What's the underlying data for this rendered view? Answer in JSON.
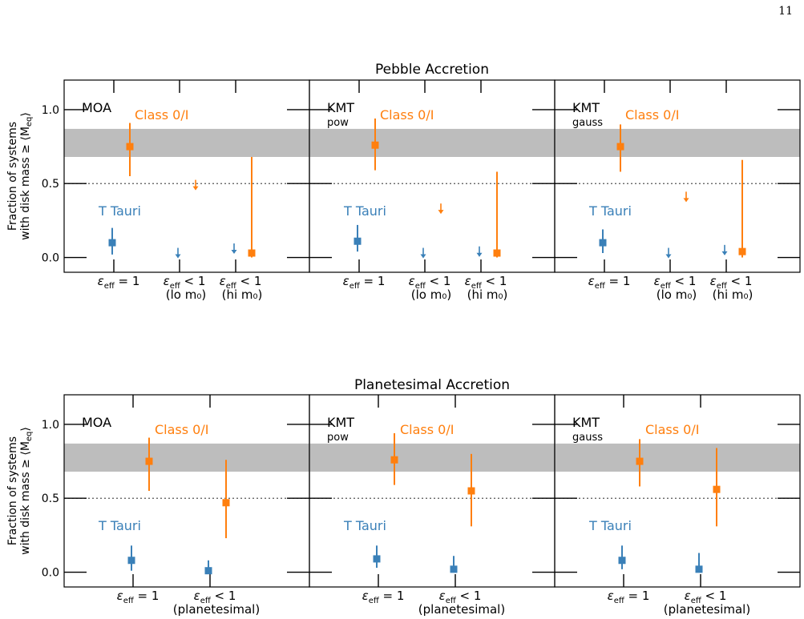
{
  "page_number": "11",
  "colors": {
    "class01": "#ff7f0e",
    "ttauri": "#3a80b8",
    "band": "#bdbdbd",
    "frame": "#000000"
  },
  "y_axis": {
    "line1": "Fraction of systems",
    "line2": "with disk mass ≥ ⟨M",
    "sub": "eq",
    "close": "⟩"
  },
  "pebble_xlabels": [
    {
      "eps": "ε",
      "sub": "eff",
      "rel": " = 1",
      "line2": ""
    },
    {
      "eps": "ε",
      "sub": "eff",
      "rel": " < 1",
      "line2": "(lo m₀)"
    },
    {
      "eps": "ε",
      "sub": "eff",
      "rel": " < 1",
      "line2": "(hi m₀)"
    }
  ],
  "plan_xlabels": [
    {
      "eps": "ε",
      "sub": "eff",
      "rel": " = 1",
      "line2": ""
    },
    {
      "eps": "ε",
      "sub": "eff",
      "rel": " < 1",
      "line2": "(planetesimal)"
    }
  ],
  "chart_data": [
    {
      "type": "scatter",
      "row_title": "Pebble Accretion",
      "panels": [
        {
          "label": "MOA",
          "sublabel": "",
          "class_label": "Class 0/I",
          "tt_label": "T Tauri",
          "ylim": [
            -0.1,
            1.2
          ],
          "yticks": [
            "0.0",
            "0.5",
            "1.0"
          ],
          "band": [
            0.68,
            0.87
          ],
          "reference_line": 0.5,
          "points": [
            {
              "x": 1,
              "y": 0.1,
              "lo": 0.02,
              "hi": 0.2,
              "series": "T Tauri",
              "kind": "point"
            },
            {
              "x": 1.2,
              "y": 0.75,
              "lo": 0.55,
              "hi": 0.91,
              "series": "Class 0/I",
              "kind": "point"
            },
            {
              "x": 2,
              "y": 0.0,
              "series": "T Tauri",
              "kind": "upper_limit"
            },
            {
              "x": 2.2,
              "y": 0.46,
              "series": "Class 0/I",
              "kind": "upper_limit"
            },
            {
              "x": 3,
              "y": 0.03,
              "series": "T Tauri",
              "kind": "upper_limit"
            },
            {
              "x": 3.2,
              "y": 0.03,
              "lo": 0.0,
              "hi": 0.68,
              "series": "Class 0/I",
              "kind": "point"
            }
          ]
        },
        {
          "label": "KMT",
          "sublabel": "pow",
          "class_label": "Class 0/I",
          "tt_label": "T Tauri",
          "ylim": [
            -0.1,
            1.2
          ],
          "yticks": [
            "0.0",
            "0.5",
            "1.0"
          ],
          "band": [
            0.68,
            0.87
          ],
          "reference_line": 0.5,
          "points": [
            {
              "x": 1,
              "y": 0.11,
              "lo": 0.04,
              "hi": 0.22,
              "series": "T Tauri",
              "kind": "point"
            },
            {
              "x": 1.2,
              "y": 0.76,
              "lo": 0.59,
              "hi": 0.94,
              "series": "Class 0/I",
              "kind": "point"
            },
            {
              "x": 2,
              "y": 0.0,
              "series": "T Tauri",
              "kind": "upper_limit"
            },
            {
              "x": 2.2,
              "y": 0.3,
              "series": "Class 0/I",
              "kind": "upper_limit"
            },
            {
              "x": 3,
              "y": 0.01,
              "series": "T Tauri",
              "kind": "upper_limit"
            },
            {
              "x": 3.2,
              "y": 0.03,
              "lo": 0.0,
              "hi": 0.58,
              "series": "Class 0/I",
              "kind": "point"
            }
          ]
        },
        {
          "label": "KMT",
          "sublabel": "gauss",
          "class_label": "Class 0/I",
          "tt_label": "T Tauri",
          "ylim": [
            -0.1,
            1.2
          ],
          "yticks": [
            "0.0",
            "0.5",
            "1.0"
          ],
          "band": [
            0.68,
            0.87
          ],
          "reference_line": 0.5,
          "points": [
            {
              "x": 1,
              "y": 0.1,
              "lo": 0.03,
              "hi": 0.19,
              "series": "T Tauri",
              "kind": "point"
            },
            {
              "x": 1.2,
              "y": 0.75,
              "lo": 0.58,
              "hi": 0.9,
              "series": "Class 0/I",
              "kind": "point"
            },
            {
              "x": 2,
              "y": 0.0,
              "series": "T Tauri",
              "kind": "upper_limit"
            },
            {
              "x": 2.2,
              "y": 0.38,
              "series": "Class 0/I",
              "kind": "upper_limit"
            },
            {
              "x": 3,
              "y": 0.02,
              "series": "T Tauri",
              "kind": "upper_limit"
            },
            {
              "x": 3.2,
              "y": 0.04,
              "lo": 0.0,
              "hi": 0.66,
              "series": "Class 0/I",
              "kind": "point"
            }
          ]
        }
      ]
    },
    {
      "type": "scatter",
      "row_title": "Planetesimal Accretion",
      "panels": [
        {
          "label": "MOA",
          "sublabel": "",
          "class_label": "Class 0/I",
          "tt_label": "T Tauri",
          "ylim": [
            -0.1,
            1.2
          ],
          "yticks": [
            "0.0",
            "0.5",
            "1.0"
          ],
          "band": [
            0.68,
            0.87
          ],
          "reference_line": 0.5,
          "points": [
            {
              "x": 1,
              "y": 0.08,
              "lo": 0.01,
              "hi": 0.18,
              "series": "T Tauri",
              "kind": "point"
            },
            {
              "x": 1.2,
              "y": 0.75,
              "lo": 0.55,
              "hi": 0.91,
              "series": "Class 0/I",
              "kind": "point"
            },
            {
              "x": 2,
              "y": 0.01,
              "lo": 0.0,
              "hi": 0.08,
              "series": "T Tauri",
              "kind": "point"
            },
            {
              "x": 2.2,
              "y": 0.47,
              "lo": 0.23,
              "hi": 0.76,
              "series": "Class 0/I",
              "kind": "point"
            }
          ]
        },
        {
          "label": "KMT",
          "sublabel": "pow",
          "class_label": "Class 0/I",
          "tt_label": "T Tauri",
          "ylim": [
            -0.1,
            1.2
          ],
          "yticks": [
            "0.0",
            "0.5",
            "1.0"
          ],
          "band": [
            0.68,
            0.87
          ],
          "reference_line": 0.5,
          "points": [
            {
              "x": 1,
              "y": 0.09,
              "lo": 0.03,
              "hi": 0.18,
              "series": "T Tauri",
              "kind": "point"
            },
            {
              "x": 1.2,
              "y": 0.76,
              "lo": 0.59,
              "hi": 0.94,
              "series": "Class 0/I",
              "kind": "point"
            },
            {
              "x": 2,
              "y": 0.02,
              "lo": 0.0,
              "hi": 0.11,
              "series": "T Tauri",
              "kind": "point"
            },
            {
              "x": 2.2,
              "y": 0.55,
              "lo": 0.31,
              "hi": 0.8,
              "series": "Class 0/I",
              "kind": "point"
            }
          ]
        },
        {
          "label": "KMT",
          "sublabel": "gauss",
          "class_label": "Class 0/I",
          "tt_label": "T Tauri",
          "ylim": [
            -0.1,
            1.2
          ],
          "yticks": [
            "0.0",
            "0.5",
            "1.0"
          ],
          "band": [
            0.68,
            0.87
          ],
          "reference_line": 0.5,
          "points": [
            {
              "x": 1,
              "y": 0.08,
              "lo": 0.02,
              "hi": 0.18,
              "series": "T Tauri",
              "kind": "point"
            },
            {
              "x": 1.2,
              "y": 0.75,
              "lo": 0.58,
              "hi": 0.9,
              "series": "Class 0/I",
              "kind": "point"
            },
            {
              "x": 2,
              "y": 0.02,
              "lo": 0.0,
              "hi": 0.13,
              "series": "T Tauri",
              "kind": "point"
            },
            {
              "x": 2.2,
              "y": 0.56,
              "lo": 0.31,
              "hi": 0.84,
              "series": "Class 0/I",
              "kind": "point"
            }
          ]
        }
      ]
    }
  ]
}
